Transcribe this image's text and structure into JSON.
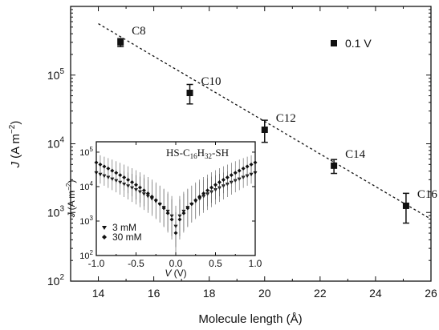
{
  "chart_data": [
    {
      "type": "scatter",
      "xlabel": "Molecule length (Å)",
      "ylabel_main": "J",
      "ylabel_unit": "(A m",
      "ylabel_exp": "−2",
      "ylabel_close": ")",
      "yscale": "log",
      "xlim": [
        13,
        26
      ],
      "ylim": [
        100,
        1000000
      ],
      "xticks": [
        14,
        16,
        18,
        20,
        22,
        24,
        26
      ],
      "yticks": [
        {
          "value": 100,
          "base": "10",
          "exp": "2"
        },
        {
          "value": 1000,
          "base": "10",
          "exp": "3"
        },
        {
          "value": 10000,
          "base": "10",
          "exp": "4"
        },
        {
          "value": 100000,
          "base": "10",
          "exp": "5"
        }
      ],
      "legend": {
        "label": "0.1 V",
        "position": "top-right"
      },
      "series": [
        {
          "points": [
            {
              "label": "C8",
              "x": 14.8,
              "y": 300000,
              "yerr_low": 260000,
              "yerr_high": 340000
            },
            {
              "label": "C10",
              "x": 17.3,
              "y": 55000,
              "yerr_low": 38000,
              "yerr_high": 73000
            },
            {
              "label": "C12",
              "x": 20.0,
              "y": 16000,
              "yerr_low": 10500,
              "yerr_high": 22000
            },
            {
              "label": "C14",
              "x": 22.5,
              "y": 4800,
              "yerr_low": 3700,
              "yerr_high": 5900
            },
            {
              "label": "C16",
              "x": 25.1,
              "y": 1250,
              "yerr_low": 700,
              "yerr_high": 1900
            }
          ]
        }
      ],
      "fit_line": {
        "style": "dashed",
        "x": [
          14,
          26
        ],
        "y": [
          560000,
          800
        ]
      }
    },
    {
      "type": "scatter",
      "title_prefix": "HS-C",
      "title_sub1": "16",
      "title_mid": "H",
      "title_sub2": "32",
      "title_suffix": "-SH",
      "xlabel_var": "V",
      "xlabel_unit": " (V)",
      "ylabel_main": "J",
      "ylabel_unit": "(A m",
      "ylabel_exp": "−2",
      "ylabel_close": ")",
      "yscale": "log",
      "xlim": [
        -1.0,
        1.0
      ],
      "ylim": [
        100,
        200000
      ],
      "xticks": [
        "-1.0",
        "-0.5",
        "0.0",
        "0.5",
        "1.0"
      ],
      "yticks": [
        {
          "value": 100,
          "base": "10",
          "exp": "2"
        },
        {
          "value": 1000,
          "base": "10",
          "exp": "3"
        },
        {
          "value": 10000,
          "base": "10",
          "exp": "4"
        },
        {
          "value": 100000,
          "base": "10",
          "exp": "5"
        }
      ],
      "legend_position": "bottom-left",
      "series": [
        {
          "name": "3 mM",
          "marker": "triangle-down",
          "j0": 25000,
          "jmin": 700
        },
        {
          "name": "30 mM",
          "marker": "diamond",
          "j0": 50000,
          "jmin": 450
        }
      ]
    }
  ]
}
